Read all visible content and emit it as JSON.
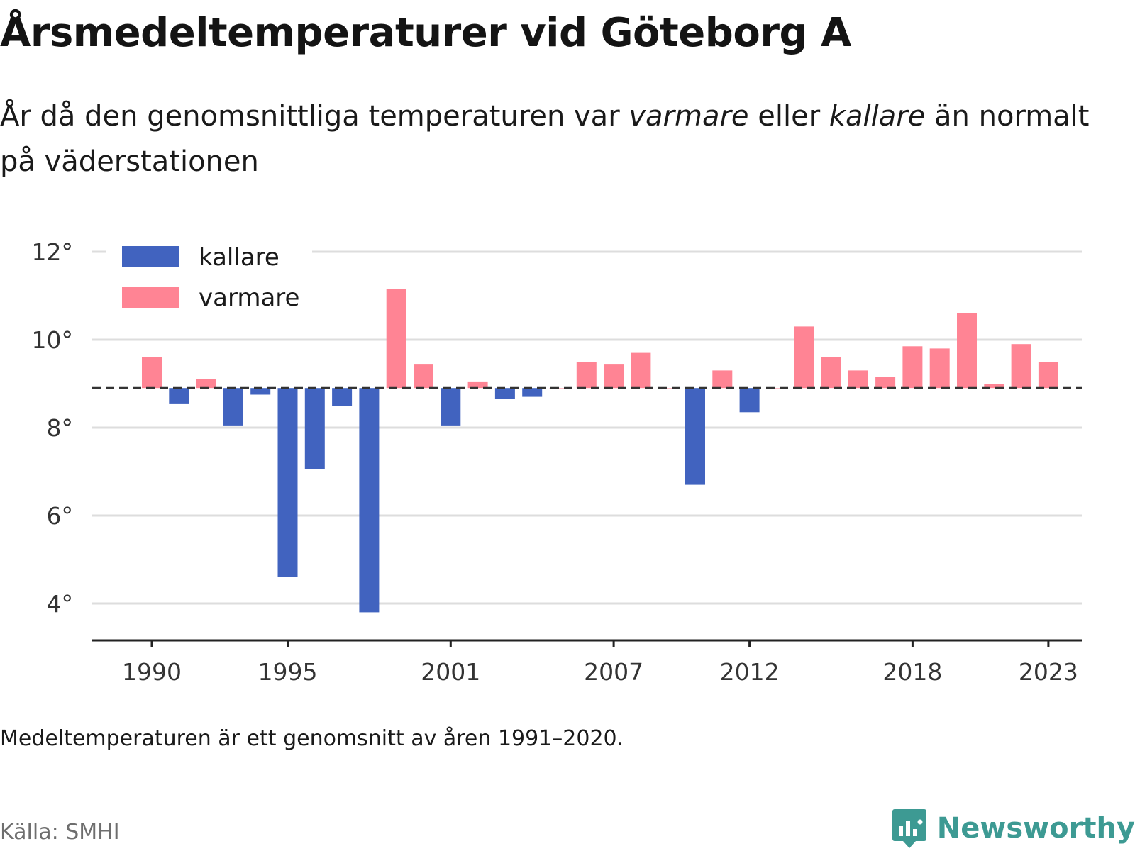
{
  "header": {
    "title": "Årsmedeltemperaturer vid Göteborg A",
    "subtitle_part1": "År då den genomsnittliga temperaturen var ",
    "subtitle_em1": "varmare",
    "subtitle_part2": " eller ",
    "subtitle_em2": "kallare",
    "subtitle_part3": " än normalt på väderstationen"
  },
  "chart_data": {
    "type": "bar",
    "baseline": 8.9,
    "ylim": [
      3.2,
      12.5
    ],
    "yticks": [
      4,
      6,
      8,
      10,
      12
    ],
    "ytick_labels": [
      "4°",
      "6°",
      "8°",
      "10°",
      "12°"
    ],
    "xticks": [
      1990,
      1995,
      2001,
      2007,
      2012,
      2018,
      2023
    ],
    "xtick_labels": [
      "1990",
      "1995",
      "2001",
      "2007",
      "2012",
      "2018",
      "2023"
    ],
    "grid": true,
    "legend_position": "top-left",
    "series": [
      {
        "name": "kallare",
        "color": "#4163bf"
      },
      {
        "name": "varmare",
        "color": "#ff8494"
      }
    ],
    "years": [
      1990,
      1991,
      1992,
      1993,
      1994,
      1995,
      1996,
      1997,
      1998,
      1999,
      2000,
      2001,
      2002,
      2003,
      2004,
      2005,
      2006,
      2007,
      2008,
      2009,
      2010,
      2011,
      2012,
      2013,
      2014,
      2015,
      2016,
      2017,
      2018,
      2019,
      2020,
      2021,
      2022,
      2023
    ],
    "values": [
      9.6,
      8.55,
      9.1,
      8.05,
      8.75,
      4.6,
      7.05,
      8.5,
      3.8,
      11.15,
      9.45,
      8.05,
      9.05,
      8.65,
      8.7,
      8.9,
      9.5,
      9.45,
      9.7,
      8.9,
      6.7,
      9.3,
      8.35,
      8.9,
      10.3,
      9.6,
      9.3,
      9.15,
      9.85,
      9.8,
      10.6,
      9.0,
      9.9,
      9.5
    ]
  },
  "footer": {
    "note": "Medeltemperaturen är ett genomsnitt av åren 1991–2020.",
    "source": "Källa: SMHI",
    "brand": "Newsworthy"
  },
  "colors": {
    "cold": "#4163bf",
    "warm": "#ff8494",
    "brand": "#3d9a93"
  }
}
